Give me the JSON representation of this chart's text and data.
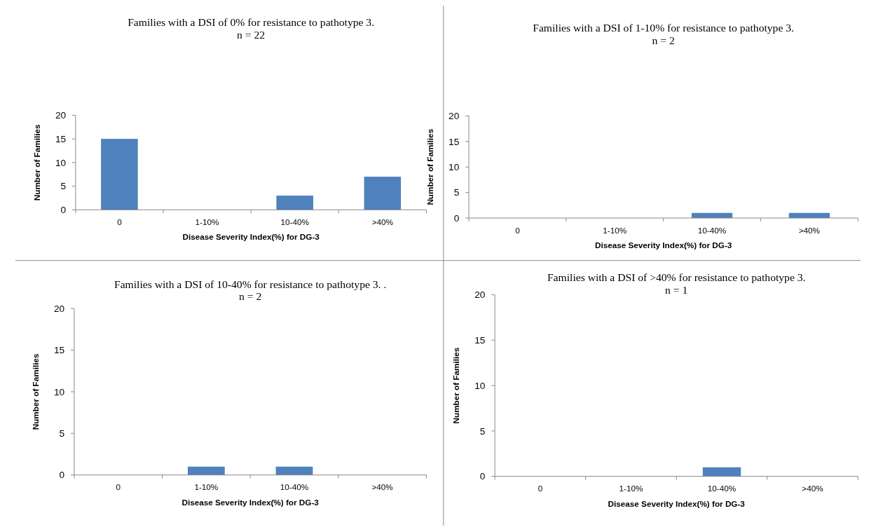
{
  "chart_data": [
    {
      "type": "bar",
      "title": "Families with a DSI of 0% for resistance to pathotype 3.",
      "subtitle": "n = 22",
      "xlabel": "Disease Severity Index(%) for DG-3",
      "ylabel": "Number of Families",
      "categories": [
        "0",
        "1-10%",
        "10-40%",
        ">40%"
      ],
      "values": [
        15,
        0,
        3,
        7
      ],
      "color": "#4f81bd",
      "ylim": [
        0,
        20
      ],
      "yticks": [
        0,
        5,
        10,
        15,
        20
      ]
    },
    {
      "type": "bar",
      "title": "Families with a DSI of 1-10% for resistance to pathotype 3.",
      "subtitle": "n = 2",
      "xlabel": "Disease Severity Index(%) for DG-3",
      "ylabel": "Number of Families",
      "categories": [
        "0",
        "1-10%",
        "10-40%",
        ">40%"
      ],
      "values": [
        0,
        0,
        1,
        1
      ],
      "color": "#4f81bd",
      "ylim": [
        0,
        20
      ],
      "yticks": [
        0,
        5,
        10,
        15,
        20
      ]
    },
    {
      "type": "bar",
      "title": "Families with a DSI of 10-40% for resistance to pathotype 3. .",
      "subtitle": "n = 2",
      "xlabel": "Disease Severity Index(%) for DG-3",
      "ylabel": "Number of Families",
      "categories": [
        "0",
        "1-10%",
        "10-40%",
        ">40%"
      ],
      "values": [
        0,
        1,
        1,
        0
      ],
      "color": "#4f81bd",
      "ylim": [
        0,
        20
      ],
      "yticks": [
        0,
        5,
        10,
        15,
        20
      ]
    },
    {
      "type": "bar",
      "title": "Families with a DSI of >40% for resistance to pathotype 3.",
      "subtitle": "n = 1",
      "xlabel": "Disease Severity Index(%) for DG-3",
      "ylabel": "Number of Families",
      "categories": [
        "0",
        "1-10%",
        "10-40%",
        ">40%"
      ],
      "values": [
        0,
        0,
        1,
        0
      ],
      "color": "#4f81bd",
      "ylim": [
        0,
        20
      ],
      "yticks": [
        0,
        5,
        10,
        15,
        20
      ]
    }
  ]
}
